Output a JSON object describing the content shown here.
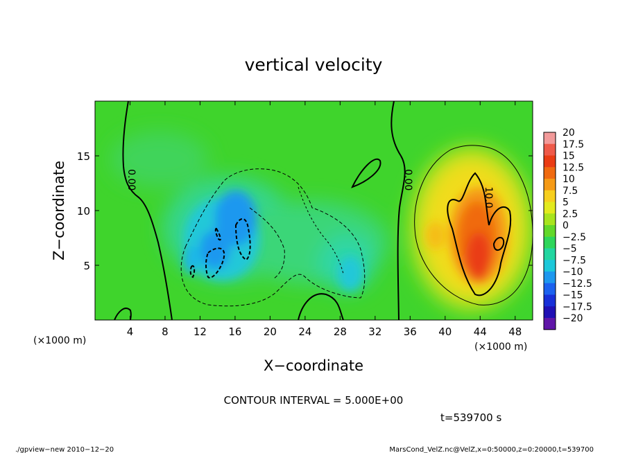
{
  "chart_data": {
    "type": "heatmap",
    "title": "vertical velocity",
    "xlabel": "X−coordinate",
    "ylabel": "Z−coordinate",
    "x_unit_left": "(×1000 m)",
    "x_unit_right": "(×1000 m)",
    "xlim": [
      0,
      50
    ],
    "ylim": [
      0,
      20
    ],
    "x_ticks": [
      4,
      8,
      12,
      16,
      20,
      24,
      28,
      32,
      36,
      40,
      44,
      48
    ],
    "y_ticks": [
      5,
      10,
      15
    ],
    "contour_interval_text": "CONTOUR INTERVAL = 5.000E+00",
    "time_text": "t=539700 s",
    "contour_labels": [
      {
        "text": "0.00",
        "x": 3.8,
        "z": 12.8
      },
      {
        "text": "0.00",
        "x": 35.4,
        "z": 12.8
      },
      {
        "text": "10.0",
        "x": 44.6,
        "z": 11.2
      }
    ],
    "colorbar_labels": [
      "20",
      "17.5",
      "15",
      "12.5",
      "10",
      "7.5",
      "5",
      "2.5",
      "0",
      "−2.5",
      "−5",
      "−7.5",
      "−10",
      "−12.5",
      "−15",
      "−17.5",
      "−20"
    ],
    "colorbar_colors": [
      "#f29a9a",
      "#ef5a4a",
      "#ea3c14",
      "#f06a10",
      "#f59a16",
      "#f7cf1e",
      "#e3ea1e",
      "#a8e41e",
      "#62d82a",
      "#2ed65a",
      "#22d6a0",
      "#1cc8da",
      "#1e98ef",
      "#1c62ef",
      "#1830d8",
      "#2010b4",
      "#6016a8"
    ],
    "features": [
      {
        "name": "updraft",
        "x": 43.5,
        "z": 8.0,
        "w_peak": 14
      },
      {
        "name": "downdraft",
        "x": 15.5,
        "z": 7.5,
        "w_peak": -9
      },
      {
        "name": "weak-downdraft",
        "x": 24,
        "z": 7,
        "w_peak": -3
      }
    ]
  },
  "footer": {
    "left": "./gpview−new   2010−12−20",
    "right": "MarsCond_VelZ.nc@VelZ,x=0:50000,z=0:20000,t=539700"
  }
}
